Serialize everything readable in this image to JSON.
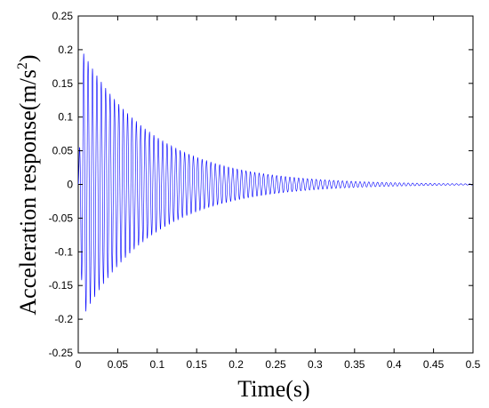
{
  "chart_data": {
    "type": "line",
    "title": "",
    "xlabel": "Time(s)",
    "ylabel_main": "Acceleration response(m/s",
    "ylabel_sup": "2",
    "ylabel_close": ")",
    "xlim": [
      0,
      0.5
    ],
    "ylim": [
      -0.25,
      0.25
    ],
    "xticks": [
      "0",
      "0.05",
      "0.1",
      "0.15",
      "0.2",
      "0.25",
      "0.3",
      "0.35",
      "0.4",
      "0.45",
      "0.5"
    ],
    "yticks": [
      "0.25",
      "0.2",
      "0.15",
      "0.1",
      "0.05",
      "0",
      "-0.05",
      "-0.1",
      "-0.15",
      "-0.2",
      "-0.25"
    ],
    "grid": false,
    "line_color": "#0000ff",
    "series": [
      {
        "description_of_signal": "decaying oscillation",
        "peak_amplitude": 0.21,
        "decay_rate_per_s": 11,
        "frequency_hz": 180,
        "x_end": 0.5
      }
    ]
  }
}
